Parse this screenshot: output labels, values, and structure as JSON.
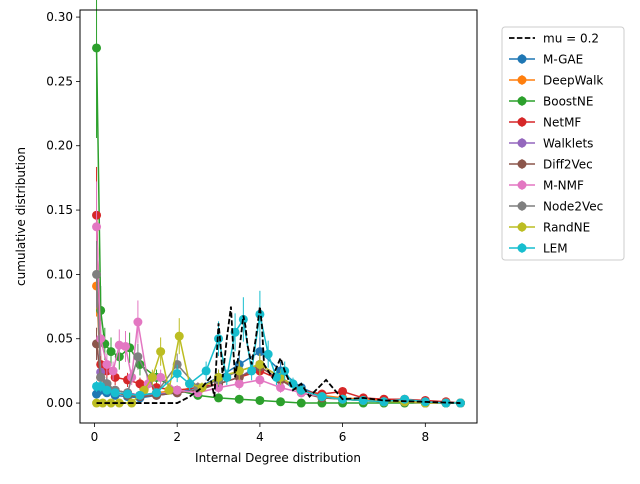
{
  "chart_data": {
    "type": "line",
    "title": "",
    "xlabel": "Internal Degree distribution",
    "ylabel": "cumulative distribution",
    "xlim": [
      -0.35,
      9.25
    ],
    "ylim": [
      -0.0155,
      0.3055
    ],
    "xticks": [
      0,
      2,
      4,
      6,
      8
    ],
    "xtick_labels": [
      "0",
      "2",
      "4",
      "6",
      "8"
    ],
    "yticks": [
      0.0,
      0.05,
      0.1,
      0.15,
      0.2,
      0.25,
      0.3
    ],
    "ytick_labels": [
      "0.00",
      "0.05",
      "0.10",
      "0.15",
      "0.20",
      "0.25",
      "0.30"
    ],
    "legend_position": "outside-right",
    "reference_line": {
      "name": "mu = 0.2",
      "color": "#000000",
      "x": [
        0.05,
        2.0,
        2.3,
        2.6,
        2.8,
        2.9,
        3.0,
        3.05,
        3.1,
        3.2,
        3.3,
        3.35,
        3.4,
        3.5,
        3.6,
        3.65,
        3.7,
        3.8,
        3.9,
        4.0,
        4.05,
        4.1,
        4.3,
        4.5,
        4.6,
        4.8,
        5.0,
        5.2,
        5.6,
        6.0,
        6.5,
        7.0,
        8.85
      ],
      "y": [
        0.0,
        0.0,
        0.005,
        0.012,
        0.02,
        0.005,
        0.062,
        0.045,
        0.02,
        0.05,
        0.075,
        0.045,
        0.02,
        0.04,
        0.068,
        0.06,
        0.045,
        0.03,
        0.05,
        0.075,
        0.06,
        0.03,
        0.02,
        0.035,
        0.025,
        0.01,
        0.015,
        0.005,
        0.018,
        0.003,
        0.004,
        0.002,
        0.0
      ]
    },
    "series": [
      {
        "name": "M-GAE",
        "color": "#1f77b4",
        "x": [
          0.05,
          0.15,
          0.3,
          0.5,
          0.8,
          1.1,
          1.5,
          2.0,
          2.5,
          3.0,
          3.5,
          4.0,
          4.5,
          5.0,
          5.5,
          6.0,
          6.5,
          7.0,
          7.5,
          8.0,
          8.5,
          8.85
        ],
        "y": [
          0.007,
          0.01,
          0.008,
          0.006,
          0.005,
          0.004,
          0.006,
          0.008,
          0.012,
          0.02,
          0.03,
          0.04,
          0.025,
          0.012,
          0.005,
          0.003,
          0.002,
          0.001,
          0.001,
          0.0,
          0.0,
          0.0
        ]
      },
      {
        "name": "DeepWalk",
        "color": "#ff7f0e",
        "x": [
          0.05,
          0.15,
          0.3,
          0.5,
          0.8,
          1.1,
          1.5,
          2.0,
          2.5,
          3.0,
          3.5,
          4.0,
          4.5,
          5.0,
          5.5,
          6.0,
          6.5,
          7.0,
          7.5,
          8.0,
          8.5,
          8.85
        ],
        "y": [
          0.091,
          0.02,
          0.015,
          0.01,
          0.008,
          0.006,
          0.008,
          0.01,
          0.012,
          0.018,
          0.025,
          0.03,
          0.02,
          0.01,
          0.006,
          0.004,
          0.003,
          0.002,
          0.001,
          0.001,
          0.0,
          0.0
        ]
      },
      {
        "name": "BoostNE",
        "color": "#2ca02c",
        "x": [
          0.05,
          0.15,
          0.25,
          0.4,
          0.6,
          0.85,
          1.1,
          1.5,
          2.0,
          2.5,
          3.0,
          3.5,
          4.0,
          4.5,
          5.0,
          5.5,
          6.0,
          6.5,
          7.0,
          7.5,
          8.0,
          8.5,
          8.85
        ],
        "y": [
          0.276,
          0.072,
          0.046,
          0.04,
          0.036,
          0.043,
          0.03,
          0.02,
          0.01,
          0.006,
          0.004,
          0.003,
          0.002,
          0.001,
          0.0,
          0.0,
          0.0,
          0.0,
          0.0,
          0.0,
          0.0,
          0.0,
          0.0
        ]
      },
      {
        "name": "NetMF",
        "color": "#d62728",
        "x": [
          0.05,
          0.15,
          0.3,
          0.5,
          0.8,
          1.1,
          1.5,
          2.0,
          2.5,
          3.0,
          3.5,
          4.0,
          4.5,
          5.0,
          5.5,
          6.0,
          6.5,
          7.0,
          7.5,
          8.0,
          8.5,
          8.85
        ],
        "y": [
          0.146,
          0.03,
          0.025,
          0.02,
          0.018,
          0.015,
          0.012,
          0.01,
          0.012,
          0.015,
          0.02,
          0.025,
          0.018,
          0.01,
          0.007,
          0.009,
          0.004,
          0.003,
          0.003,
          0.002,
          0.001,
          0.0
        ]
      },
      {
        "name": "Walklets",
        "color": "#9467bd",
        "x": [
          0.05,
          0.15,
          0.3,
          0.5,
          0.8,
          1.1,
          1.5,
          2.0,
          2.5,
          3.0,
          3.5,
          4.0,
          4.5,
          5.0,
          5.5,
          6.0,
          6.5,
          7.0,
          7.5,
          8.0,
          8.5,
          8.85
        ],
        "y": [
          0.046,
          0.024,
          0.015,
          0.01,
          0.008,
          0.006,
          0.007,
          0.008,
          0.01,
          0.015,
          0.02,
          0.03,
          0.02,
          0.01,
          0.005,
          0.003,
          0.002,
          0.001,
          0.001,
          0.0,
          0.0,
          0.0
        ]
      },
      {
        "name": "Diff2Vec",
        "color": "#8c564b",
        "x": [
          0.05,
          0.15,
          0.3,
          0.5,
          0.8,
          1.1,
          1.5,
          2.0,
          2.5,
          3.0,
          3.5,
          4.0,
          4.5,
          5.0,
          5.5,
          6.0,
          6.5,
          7.0,
          7.5,
          8.0,
          8.5,
          8.85
        ],
        "y": [
          0.046,
          0.02,
          0.012,
          0.008,
          0.006,
          0.005,
          0.006,
          0.008,
          0.01,
          0.015,
          0.02,
          0.028,
          0.018,
          0.008,
          0.004,
          0.003,
          0.002,
          0.001,
          0.001,
          0.0,
          0.0,
          0.0
        ]
      },
      {
        "name": "M-NMF",
        "color": "#e377c2",
        "x": [
          0.05,
          0.15,
          0.3,
          0.45,
          0.6,
          0.75,
          0.9,
          1.05,
          1.3,
          1.6,
          2.0,
          2.5,
          3.0,
          3.5,
          4.0,
          4.5,
          5.0,
          5.5,
          6.0,
          6.5,
          7.0,
          7.5,
          8.0,
          8.5,
          8.85
        ],
        "y": [
          0.137,
          0.05,
          0.03,
          0.025,
          0.045,
          0.044,
          0.02,
          0.063,
          0.015,
          0.02,
          0.01,
          0.008,
          0.012,
          0.015,
          0.018,
          0.012,
          0.008,
          0.005,
          0.003,
          0.002,
          0.001,
          0.001,
          0.0,
          0.0,
          0.0
        ]
      },
      {
        "name": "Node2Vec",
        "color": "#7f7f7f",
        "x": [
          0.05,
          0.15,
          0.3,
          0.5,
          0.8,
          1.05,
          1.5,
          2.0,
          2.5,
          3.0,
          3.5,
          4.0,
          4.5,
          5.0,
          5.5,
          6.0,
          6.5,
          7.0,
          7.5,
          8.0,
          8.5,
          8.85
        ],
        "y": [
          0.1,
          0.02,
          0.015,
          0.01,
          0.008,
          0.036,
          0.008,
          0.03,
          0.012,
          0.018,
          0.025,
          0.03,
          0.02,
          0.01,
          0.005,
          0.003,
          0.002,
          0.001,
          0.001,
          0.0,
          0.0,
          0.0
        ]
      },
      {
        "name": "RandNE",
        "color": "#bcbd22",
        "x": [
          0.05,
          0.2,
          0.4,
          0.6,
          0.9,
          1.2,
          1.4,
          1.6,
          1.8,
          2.05,
          2.3,
          2.6,
          3.0,
          3.5,
          4.0,
          4.5,
          5.0,
          5.5,
          6.0,
          6.5,
          7.0,
          7.5,
          8.0,
          8.5,
          8.85
        ],
        "y": [
          0.0,
          0.0,
          0.0,
          0.0,
          0.0,
          0.01,
          0.02,
          0.04,
          0.01,
          0.052,
          0.015,
          0.012,
          0.02,
          0.025,
          0.03,
          0.02,
          0.01,
          0.005,
          0.003,
          0.002,
          0.001,
          0.001,
          0.0,
          0.0,
          0.0
        ]
      },
      {
        "name": "LEM",
        "color": "#17becf",
        "x": [
          0.05,
          0.15,
          0.3,
          0.5,
          0.8,
          1.1,
          1.5,
          2.0,
          2.3,
          2.7,
          3.0,
          3.2,
          3.4,
          3.6,
          3.8,
          4.0,
          4.2,
          4.4,
          4.6,
          4.8,
          5.0,
          5.5,
          6.0,
          6.5,
          7.0,
          7.5,
          8.0,
          8.5,
          8.85
        ],
        "y": [
          0.013,
          0.013,
          0.01,
          0.008,
          0.007,
          0.006,
          0.008,
          0.023,
          0.015,
          0.025,
          0.05,
          0.02,
          0.055,
          0.065,
          0.025,
          0.069,
          0.038,
          0.02,
          0.025,
          0.015,
          0.01,
          0.005,
          0.003,
          0.002,
          0.001,
          0.003,
          0.001,
          0.0,
          0.0
        ]
      }
    ]
  }
}
